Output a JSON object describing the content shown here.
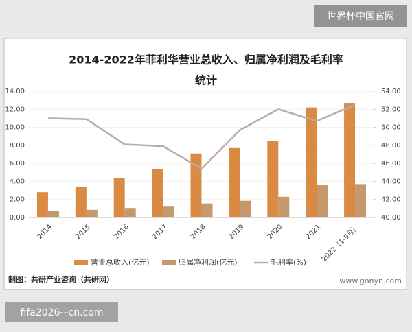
{
  "chart_data": {
    "type": "bar",
    "title": [
      "2014-2022年菲利华营业总收入、归属净利润及毛利率",
      "统计"
    ],
    "categories": [
      "2014",
      "2015",
      "2016",
      "2017",
      "2018",
      "2019",
      "2020",
      "2021",
      "2022（1-9月）"
    ],
    "series": [
      {
        "name": "营业总收入(亿元)",
        "color": "#d98b43",
        "type": "bar",
        "values": [
          2.8,
          3.4,
          4.4,
          5.4,
          7.1,
          7.7,
          8.5,
          12.2,
          12.7
        ]
      },
      {
        "name": "归属净利润(亿元)",
        "color": "#c49a6c",
        "type": "bar",
        "values": [
          0.7,
          0.85,
          1.05,
          1.2,
          1.55,
          1.85,
          2.3,
          3.6,
          3.7
        ]
      },
      {
        "name": "毛利率(%)",
        "color": "#bdaaa6",
        "type": "line",
        "axis": "y2",
        "values": [
          51.0,
          50.9,
          48.1,
          47.9,
          45.4,
          49.7,
          52.0,
          50.7,
          52.5
        ]
      }
    ],
    "ylim": [
      0,
      14
    ],
    "yticks": [
      {
        "value": 0,
        "label": "0.00"
      },
      {
        "value": 2,
        "label": "2.00"
      },
      {
        "value": 4,
        "label": "4.00"
      },
      {
        "value": 6,
        "label": "6.00"
      },
      {
        "value": 8,
        "label": "8.00"
      },
      {
        "value": 10,
        "label": "10.00"
      },
      {
        "value": 12,
        "label": "12.00"
      },
      {
        "value": 14,
        "label": "14.00"
      }
    ],
    "y2lim": [
      40,
      54
    ],
    "y2ticks": [
      {
        "value": 40,
        "label": "40.00"
      },
      {
        "value": 42,
        "label": "42.00"
      },
      {
        "value": 44,
        "label": "44.00"
      },
      {
        "value": 46,
        "label": "46.00"
      },
      {
        "value": 48,
        "label": "48.00"
      },
      {
        "value": 50,
        "label": "50.00"
      },
      {
        "value": 52,
        "label": "52.00"
      },
      {
        "value": 54,
        "label": "54.00"
      }
    ],
    "legend": "bottom",
    "source": "制图：共研产业咨询（共研网）",
    "website": "www.gonyn.com"
  },
  "overlay": {
    "top_right": "世界杯中国官网",
    "bottom_left": "fifa2026-–cn.com"
  }
}
